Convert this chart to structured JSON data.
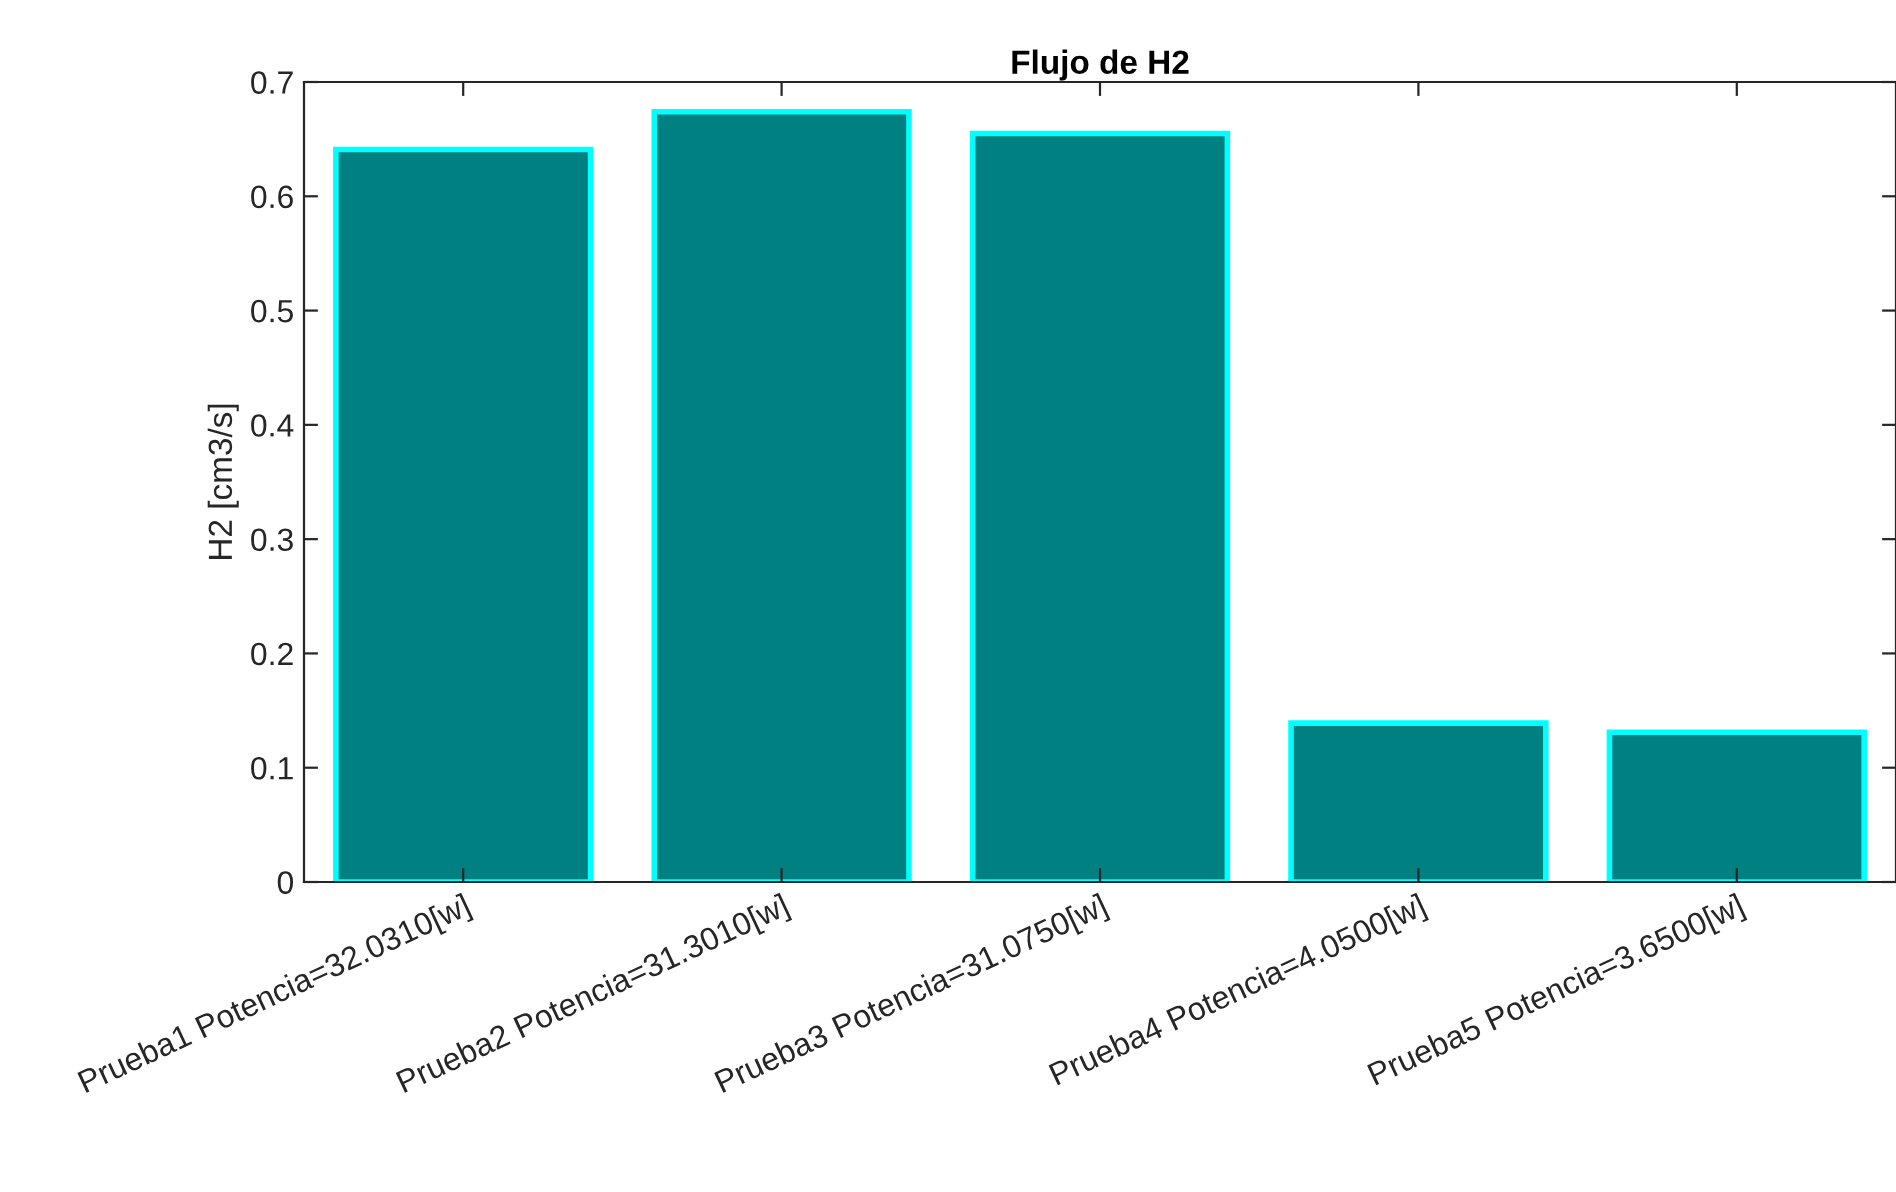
{
  "chart_data": {
    "type": "bar",
    "title": "Flujo de H2",
    "ylabel": "H2 [cm3/s]",
    "categories": [
      "Prueba1 Potencia=32.0310[w]",
      "Prueba2 Potencia=31.3010[w]",
      "Prueba3 Potencia=31.0750[w]",
      "Prueba4 Potencia=4.0500[w]",
      "Prueba5 Potencia=3.6500[w]"
    ],
    "values": [
      0.641,
      0.674,
      0.655,
      0.139,
      0.131
    ],
    "color": "#008080",
    "ylim": [
      0,
      0.7
    ],
    "yticks": [
      0,
      0.1,
      0.2,
      0.3,
      0.4,
      0.5,
      0.6,
      0.7
    ],
    "grid": false
  }
}
